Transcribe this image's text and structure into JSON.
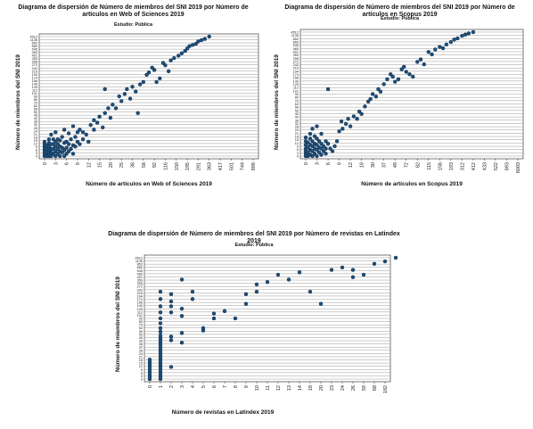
{
  "chart_data": [
    {
      "type": "scatter",
      "title": "Diagrama de dispersión de Número de miembros del SNI 2019 por Número de artículos en Web of Sciences 2019",
      "subtitle": "Estudio: Pública",
      "xlabel": "Número de artículos en Web of Sciences 2019",
      "ylabel": "Número de miembros del SNI 2019",
      "x_ticks": [
        "0",
        "3",
        "6",
        "9",
        "12",
        "15",
        "20",
        "25",
        "38",
        "58",
        "92",
        "116",
        "150",
        "195",
        "291",
        "363",
        "417",
        "501",
        "744",
        "898"
      ],
      "y_ticks": [
        "0",
        "3",
        "6",
        "9",
        "12",
        "15",
        "18",
        "21",
        "24",
        "28",
        "32",
        "36",
        "40",
        "45",
        "50",
        "56",
        "62",
        "70",
        "80",
        "90",
        "101",
        "112",
        "125",
        "140",
        "156",
        "174",
        "194",
        "216",
        "242",
        "272",
        "308",
        "350",
        "401",
        "465",
        "545",
        "660",
        "852",
        "1135",
        "4512"
      ],
      "grid": "horizontal",
      "marker_color": "#1f4e79",
      "points": [
        [
          0.0,
          0.0
        ],
        [
          0.0,
          0.02
        ],
        [
          0.0,
          0.04
        ],
        [
          0.0,
          0.06
        ],
        [
          0.0,
          0.08
        ],
        [
          0.0,
          0.1
        ],
        [
          0.0,
          0.12
        ],
        [
          0.2,
          0.0
        ],
        [
          0.2,
          0.03
        ],
        [
          0.2,
          0.06
        ],
        [
          0.2,
          0.09
        ],
        [
          0.4,
          0.0
        ],
        [
          0.4,
          0.02
        ],
        [
          0.4,
          0.05
        ],
        [
          0.4,
          0.08
        ],
        [
          0.4,
          0.11
        ],
        [
          0.4,
          0.14
        ],
        [
          0.6,
          0.0
        ],
        [
          0.6,
          0.03
        ],
        [
          0.6,
          0.06
        ],
        [
          0.6,
          0.1
        ],
        [
          0.6,
          0.18
        ],
        [
          0.8,
          0.02
        ],
        [
          0.8,
          0.06
        ],
        [
          0.8,
          0.1
        ],
        [
          0.8,
          0.14
        ],
        [
          1.0,
          0.0
        ],
        [
          1.0,
          0.04
        ],
        [
          1.0,
          0.08
        ],
        [
          1.0,
          0.12
        ],
        [
          1.0,
          0.2
        ],
        [
          1.2,
          0.02
        ],
        [
          1.2,
          0.06
        ],
        [
          1.2,
          0.1
        ],
        [
          1.2,
          0.14
        ],
        [
          1.4,
          0.0
        ],
        [
          1.4,
          0.04
        ],
        [
          1.4,
          0.08
        ],
        [
          1.4,
          0.13
        ],
        [
          1.6,
          0.03
        ],
        [
          1.6,
          0.07
        ],
        [
          1.6,
          0.16
        ],
        [
          1.8,
          0.0
        ],
        [
          1.8,
          0.05
        ],
        [
          1.8,
          0.11
        ],
        [
          1.8,
          0.22
        ],
        [
          2.0,
          0.02
        ],
        [
          2.0,
          0.07
        ],
        [
          2.0,
          0.12
        ],
        [
          2.2,
          0.04
        ],
        [
          2.2,
          0.1
        ],
        [
          2.2,
          0.19
        ],
        [
          2.4,
          0.06
        ],
        [
          2.4,
          0.14
        ],
        [
          2.6,
          0.02
        ],
        [
          2.6,
          0.09
        ],
        [
          2.6,
          0.25
        ],
        [
          2.8,
          0.08
        ],
        [
          2.8,
          0.16
        ],
        [
          3.0,
          0.12
        ],
        [
          3.0,
          0.2
        ],
        [
          3.2,
          0.1
        ],
        [
          3.2,
          0.22
        ],
        [
          3.5,
          0.14
        ],
        [
          3.5,
          0.2
        ],
        [
          3.8,
          0.18
        ],
        [
          4.0,
          0.12
        ],
        [
          4.2,
          0.26
        ],
        [
          4.5,
          0.22
        ],
        [
          4.5,
          0.3
        ],
        [
          4.8,
          0.28
        ],
        [
          5.0,
          0.33
        ],
        [
          5.3,
          0.24
        ],
        [
          5.5,
          0.36
        ],
        [
          5.5,
          0.56
        ],
        [
          5.8,
          0.4
        ],
        [
          6.0,
          0.32
        ],
        [
          6.2,
          0.43
        ],
        [
          6.5,
          0.4
        ],
        [
          6.8,
          0.5
        ],
        [
          7.0,
          0.46
        ],
        [
          7.3,
          0.52
        ],
        [
          7.5,
          0.56
        ],
        [
          7.8,
          0.48
        ],
        [
          8.0,
          0.58
        ],
        [
          8.3,
          0.54
        ],
        [
          8.5,
          0.36
        ],
        [
          8.7,
          0.6
        ],
        [
          9.0,
          0.62
        ],
        [
          9.3,
          0.68
        ],
        [
          9.5,
          0.7
        ],
        [
          9.8,
          0.74
        ],
        [
          10.0,
          0.72
        ],
        [
          10.2,
          0.62
        ],
        [
          10.5,
          0.65
        ],
        [
          10.8,
          0.78
        ],
        [
          11.0,
          0.76
        ],
        [
          11.3,
          0.71
        ],
        [
          11.5,
          0.8
        ],
        [
          11.8,
          0.82
        ],
        [
          12.2,
          0.84
        ],
        [
          12.5,
          0.86
        ],
        [
          12.8,
          0.88
        ],
        [
          13.0,
          0.9
        ],
        [
          13.2,
          0.92
        ],
        [
          13.5,
          0.93
        ],
        [
          13.8,
          0.94
        ],
        [
          14.0,
          0.96
        ],
        [
          14.3,
          0.97
        ],
        [
          14.6,
          0.98
        ],
        [
          15.0,
          1.0
        ]
      ]
    },
    {
      "type": "scatter",
      "title": "Diagrama de dispersión de Número de miembros del SNI 2019 por Número de artículos en Scopus 2019",
      "subtitle": "Estudio: Pública",
      "xlabel": "Número de artículos en Scopus 2019",
      "ylabel": "Número de miembros del SNI 2019",
      "x_ticks": [
        "0",
        "3",
        "6",
        "9",
        "12",
        "18",
        "30",
        "37",
        "49",
        "72",
        "82",
        "115",
        "156",
        "193",
        "312",
        "412",
        "433",
        "522",
        "893",
        "6003"
      ],
      "y_ticks": [
        "0",
        "3",
        "6",
        "9",
        "12",
        "15",
        "18",
        "21",
        "24",
        "28",
        "32",
        "36",
        "40",
        "45",
        "50",
        "56",
        "62",
        "70",
        "80",
        "90",
        "101",
        "112",
        "125",
        "140",
        "156",
        "174",
        "194",
        "216",
        "242",
        "272",
        "308",
        "350",
        "401",
        "465",
        "545",
        "660",
        "852",
        "1135",
        "4512"
      ],
      "grid": "horizontal",
      "marker_color": "#1f4e79",
      "points": [
        [
          0.0,
          0.0
        ],
        [
          0.0,
          0.02
        ],
        [
          0.0,
          0.04
        ],
        [
          0.0,
          0.06
        ],
        [
          0.0,
          0.09
        ],
        [
          0.0,
          0.12
        ],
        [
          0.0,
          0.15
        ],
        [
          0.2,
          0.0
        ],
        [
          0.2,
          0.03
        ],
        [
          0.2,
          0.07
        ],
        [
          0.2,
          0.11
        ],
        [
          0.4,
          0.01
        ],
        [
          0.4,
          0.05
        ],
        [
          0.4,
          0.09
        ],
        [
          0.4,
          0.14
        ],
        [
          0.4,
          0.18
        ],
        [
          0.6,
          0.0
        ],
        [
          0.6,
          0.04
        ],
        [
          0.6,
          0.08
        ],
        [
          0.6,
          0.12
        ],
        [
          0.6,
          0.22
        ],
        [
          0.8,
          0.02
        ],
        [
          0.8,
          0.06
        ],
        [
          0.8,
          0.1
        ],
        [
          0.8,
          0.16
        ],
        [
          1.0,
          0.0
        ],
        [
          1.0,
          0.05
        ],
        [
          1.0,
          0.09
        ],
        [
          1.0,
          0.14
        ],
        [
          1.0,
          0.24
        ],
        [
          1.2,
          0.03
        ],
        [
          1.2,
          0.07
        ],
        [
          1.2,
          0.12
        ],
        [
          1.4,
          0.01
        ],
        [
          1.4,
          0.06
        ],
        [
          1.4,
          0.1
        ],
        [
          1.4,
          0.18
        ],
        [
          1.6,
          0.04
        ],
        [
          1.6,
          0.08
        ],
        [
          1.8,
          0.02
        ],
        [
          1.8,
          0.06
        ],
        [
          1.8,
          0.12
        ],
        [
          2.0,
          0.1
        ],
        [
          2.0,
          0.54
        ],
        [
          2.2,
          0.06
        ],
        [
          2.4,
          0.04
        ],
        [
          2.6,
          0.08
        ],
        [
          2.8,
          0.12
        ],
        [
          3.0,
          0.2
        ],
        [
          3.2,
          0.28
        ],
        [
          3.3,
          0.22
        ],
        [
          3.6,
          0.26
        ],
        [
          3.8,
          0.3
        ],
        [
          4.0,
          0.24
        ],
        [
          4.3,
          0.32
        ],
        [
          4.6,
          0.3
        ],
        [
          4.8,
          0.36
        ],
        [
          5.0,
          0.34
        ],
        [
          5.3,
          0.4
        ],
        [
          5.6,
          0.44
        ],
        [
          5.8,
          0.46
        ],
        [
          6.0,
          0.5
        ],
        [
          6.3,
          0.48
        ],
        [
          6.5,
          0.54
        ],
        [
          6.7,
          0.52
        ],
        [
          7.0,
          0.58
        ],
        [
          7.3,
          0.62
        ],
        [
          7.6,
          0.66
        ],
        [
          7.8,
          0.64
        ],
        [
          8.0,
          0.6
        ],
        [
          8.3,
          0.62
        ],
        [
          8.6,
          0.7
        ],
        [
          8.8,
          0.72
        ],
        [
          9.0,
          0.68
        ],
        [
          9.3,
          0.66
        ],
        [
          9.6,
          0.64
        ],
        [
          10.0,
          0.76
        ],
        [
          10.3,
          0.78
        ],
        [
          10.6,
          0.74
        ],
        [
          11.0,
          0.84
        ],
        [
          11.3,
          0.82
        ],
        [
          11.6,
          0.86
        ],
        [
          12.0,
          0.88
        ],
        [
          12.3,
          0.87
        ],
        [
          12.6,
          0.9
        ],
        [
          13.0,
          0.92
        ],
        [
          13.3,
          0.94
        ],
        [
          13.6,
          0.95
        ],
        [
          14.0,
          0.97
        ],
        [
          14.3,
          0.98
        ],
        [
          14.6,
          0.99
        ],
        [
          15.0,
          1.0
        ]
      ]
    },
    {
      "type": "scatter",
      "title": "Diagrama de dispersión de Número de miembros del SNI 2019 por Número de revistas en Latindex 2019",
      "subtitle": "Estudio: Pública",
      "xlabel": "Número de revistas en Latindex 2019",
      "ylabel": "Número de miembros del SNI 2019",
      "x_ticks": [
        "0",
        "1",
        "2",
        "3",
        "4",
        "5",
        "6",
        "7",
        "8",
        "9",
        "10",
        "11",
        "12",
        "13",
        "14",
        "18",
        "20",
        "23",
        "24",
        "26",
        "59",
        "68",
        "182"
      ],
      "y_ticks": [
        "0",
        "3",
        "6",
        "9",
        "12",
        "15",
        "18",
        "21",
        "24",
        "28",
        "32",
        "36",
        "40",
        "45",
        "50",
        "56",
        "62",
        "70",
        "80",
        "90",
        "101",
        "112",
        "125",
        "140",
        "156",
        "174",
        "194",
        "216",
        "242",
        "272",
        "308",
        "350",
        "401",
        "465",
        "545",
        "660",
        "852",
        "1135",
        "4512"
      ],
      "grid": "horizontal",
      "marker_color": "#1f4e79",
      "points": [
        [
          0,
          0.0
        ],
        [
          0,
          0.02
        ],
        [
          0,
          0.04
        ],
        [
          0,
          0.06
        ],
        [
          0,
          0.08
        ],
        [
          0,
          0.1
        ],
        [
          0,
          0.12
        ],
        [
          0,
          0.14
        ],
        [
          0,
          0.16
        ],
        [
          1,
          0.0
        ],
        [
          1,
          0.02
        ],
        [
          1,
          0.04
        ],
        [
          1,
          0.06
        ],
        [
          1,
          0.08
        ],
        [
          1,
          0.1
        ],
        [
          1,
          0.12
        ],
        [
          1,
          0.14
        ],
        [
          1,
          0.16
        ],
        [
          1,
          0.18
        ],
        [
          1,
          0.2
        ],
        [
          1,
          0.22
        ],
        [
          1,
          0.24
        ],
        [
          1,
          0.26
        ],
        [
          1,
          0.28
        ],
        [
          1,
          0.3
        ],
        [
          1,
          0.32
        ],
        [
          1,
          0.34
        ],
        [
          1,
          0.36
        ],
        [
          1,
          0.39
        ],
        [
          1,
          0.42
        ],
        [
          1,
          0.46
        ],
        [
          1,
          0.5
        ],
        [
          1,
          0.55
        ],
        [
          1,
          0.6
        ],
        [
          1,
          0.66
        ],
        [
          1,
          0.72
        ],
        [
          2,
          0.1
        ],
        [
          2,
          0.32
        ],
        [
          2,
          0.35
        ],
        [
          2,
          0.55
        ],
        [
          2,
          0.6
        ],
        [
          2,
          0.64
        ],
        [
          2,
          0.7
        ],
        [
          3,
          0.3
        ],
        [
          3,
          0.38
        ],
        [
          3,
          0.52
        ],
        [
          3,
          0.58
        ],
        [
          3,
          0.82
        ],
        [
          4,
          0.66
        ],
        [
          4,
          0.72
        ],
        [
          5,
          0.4
        ],
        [
          5,
          0.42
        ],
        [
          6,
          0.54
        ],
        [
          6,
          0.5
        ],
        [
          7,
          0.56
        ],
        [
          8,
          0.5
        ],
        [
          9,
          0.62
        ],
        [
          9,
          0.7
        ],
        [
          10,
          0.78
        ],
        [
          10,
          0.72
        ],
        [
          11,
          0.8
        ],
        [
          12,
          0.86
        ],
        [
          13,
          0.82
        ],
        [
          14,
          0.88
        ],
        [
          15,
          0.72
        ],
        [
          16,
          0.62
        ],
        [
          17,
          0.9
        ],
        [
          18,
          0.92
        ],
        [
          19,
          0.9
        ],
        [
          19,
          0.84
        ],
        [
          20,
          0.86
        ],
        [
          21,
          0.95
        ],
        [
          22,
          0.97
        ],
        [
          23,
          1.0
        ]
      ]
    }
  ]
}
